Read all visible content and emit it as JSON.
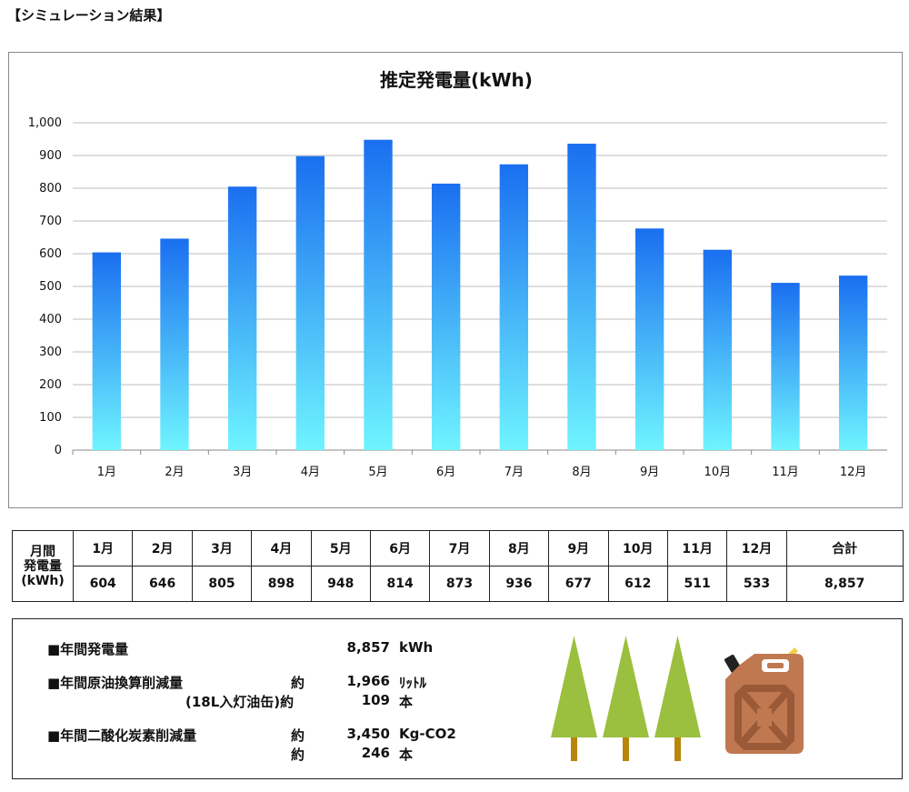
{
  "heading": "【シミュレーション結果】",
  "chart_data": {
    "type": "bar",
    "title": "推定発電量(kWh)",
    "categories": [
      "1月",
      "2月",
      "3月",
      "4月",
      "5月",
      "6月",
      "7月",
      "8月",
      "9月",
      "10月",
      "11月",
      "12月"
    ],
    "values": [
      604,
      646,
      805,
      898,
      948,
      814,
      873,
      936,
      677,
      612,
      511,
      533
    ],
    "ylim": [
      0,
      1000
    ],
    "yticks": [
      0,
      100,
      200,
      300,
      400,
      500,
      600,
      700,
      800,
      900,
      1000
    ],
    "ytick_labels": [
      "0",
      "100",
      "200",
      "300",
      "400",
      "500",
      "600",
      "700",
      "800",
      "900",
      "1,000"
    ],
    "grid": true,
    "bar_gradient": {
      "top": "#1a6ff0",
      "bottom": "#6ff4ff"
    }
  },
  "table": {
    "row_header": [
      "月間",
      "発電量",
      "(kWh)"
    ],
    "months": [
      "1月",
      "2月",
      "3月",
      "4月",
      "5月",
      "6月",
      "7月",
      "8月",
      "9月",
      "10月",
      "11月",
      "12月"
    ],
    "values": [
      "604",
      "646",
      "805",
      "898",
      "948",
      "814",
      "873",
      "936",
      "677",
      "612",
      "511",
      "533"
    ],
    "total_label": "合計",
    "total_value": "8,857"
  },
  "summary": {
    "annual_generation": {
      "label": "■年間発電量",
      "value": "8,857",
      "unit": "kWh"
    },
    "crude_oil": {
      "label": "■年間原油換算削減量",
      "approx": "約",
      "value": "1,966",
      "unit": "ﾘｯﾄﾙ",
      "sub_label": "(18L入灯油缶)約",
      "sub_value": "109",
      "sub_unit": "本"
    },
    "co2": {
      "label": "■年間二酸化炭素削減量",
      "approx": "約",
      "value": "3,450",
      "unit": "Kg-CO2",
      "approx2": "約",
      "sub_value": "246",
      "sub_unit": "本"
    },
    "colors": {
      "tree": "#9bbf3f",
      "trunk": "#b8860b",
      "can": "#c07850"
    }
  }
}
